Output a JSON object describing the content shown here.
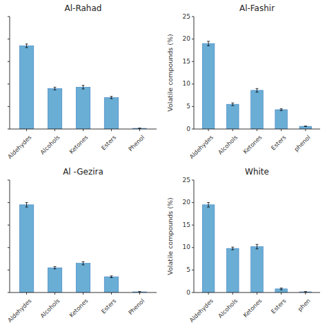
{
  "chart_data": [
    {
      "type": "bar",
      "title": "Al-Rahad",
      "categories": [
        "Aldehydes",
        "Alcohols",
        "Ketones",
        "Esters",
        "Phenol"
      ],
      "values": [
        18.5,
        9.0,
        9.3,
        7.0,
        0.15
      ],
      "errors": [
        0.4,
        0.3,
        0.4,
        0.25,
        0.05
      ],
      "color": "#6aaed6",
      "ylim": [
        0,
        25
      ],
      "yticks": [
        0,
        5,
        10,
        15,
        20,
        25
      ],
      "grid": false,
      "tick_labels": "x"
    },
    {
      "type": "bar",
      "title": "Al-Fashir",
      "categories": [
        "Aldehydes",
        "Alcohols",
        "Ketones",
        "Esters",
        "phenol"
      ],
      "values": [
        19.0,
        5.5,
        8.6,
        4.3,
        0.6
      ],
      "errors": [
        0.5,
        0.3,
        0.4,
        0.2,
        0.05
      ],
      "color": "#6aaed6",
      "ylim": [
        0,
        25
      ],
      "yticks": [
        0,
        5,
        10,
        15,
        20,
        25
      ],
      "grid": false,
      "ylabel": "Volatile compounds (%)"
    },
    {
      "type": "bar",
      "title": "Al -Gezira",
      "categories": [
        "Aldehydes",
        "Alcohols",
        "Ketones",
        "Esters",
        "Phenol"
      ],
      "values": [
        19.5,
        5.5,
        6.5,
        3.5,
        0.15
      ],
      "errors": [
        0.5,
        0.25,
        0.35,
        0.2,
        0.05
      ],
      "color": "#6aaed6",
      "ylim": [
        0,
        25
      ],
      "yticks": [
        0,
        5,
        10,
        15,
        20,
        25
      ],
      "grid": false,
      "tick_labels": "x"
    },
    {
      "type": "bar",
      "title": "White",
      "categories": [
        "Aldehydes",
        "Alcohols",
        "Ketones",
        "Esters",
        "phen"
      ],
      "values": [
        19.5,
        9.8,
        10.2,
        0.8,
        0.15
      ],
      "errors": [
        0.5,
        0.3,
        0.5,
        0.2,
        0.05
      ],
      "color": "#6aaed6",
      "ylim": [
        0,
        25
      ],
      "yticks": [
        0,
        5,
        10,
        15,
        20,
        25
      ],
      "grid": false,
      "ylabel": "Volatile compounds (%)"
    }
  ]
}
